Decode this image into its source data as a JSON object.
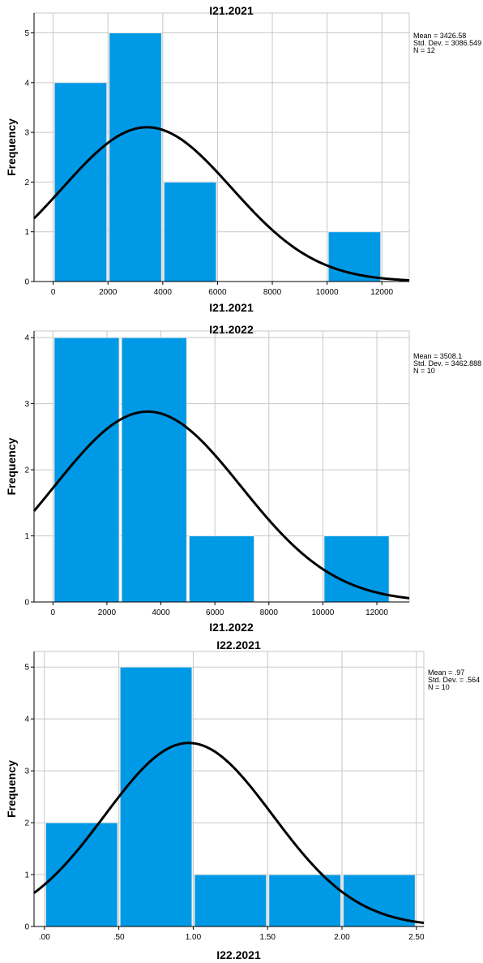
{
  "chart_data": [
    {
      "type": "bar",
      "subtype": "histogram",
      "title": "I21.2021",
      "xlabel": "I21.2021",
      "ylabel": "Frequency",
      "bins": [
        {
          "start": 0,
          "end": 2000,
          "count": 4
        },
        {
          "start": 2000,
          "end": 4000,
          "count": 5
        },
        {
          "start": 4000,
          "end": 6000,
          "count": 2
        },
        {
          "start": 6000,
          "end": 8000,
          "count": 0
        },
        {
          "start": 8000,
          "end": 10000,
          "count": 0
        },
        {
          "start": 10000,
          "end": 12000,
          "count": 1
        }
      ],
      "xlim": [
        -700,
        13000
      ],
      "ylim": [
        0,
        5.4
      ],
      "xticks": [
        0,
        2000,
        4000,
        6000,
        8000,
        10000,
        12000
      ],
      "xtick_labels": [
        "0",
        "2000",
        "4000",
        "6000",
        "8000",
        "10000",
        "12000"
      ],
      "yticks": [
        0,
        1,
        2,
        3,
        4,
        5
      ],
      "ytick_labels": [
        "0",
        "1",
        "2",
        "3",
        "4",
        "5"
      ],
      "normal_curve": {
        "mean": 3426.58,
        "sd": 3086.549,
        "n": 12,
        "bin_width": 2000
      },
      "stats": [
        "Mean = 3426.58",
        "Std. Dev. = 3086.549",
        "N = 12"
      ],
      "grid": true,
      "bar_color": "#0099e6",
      "curve_color": "#000000"
    },
    {
      "type": "bar",
      "subtype": "histogram",
      "title": "I21.2022",
      "xlabel": "I21.2022",
      "ylabel": "Frequency",
      "bins": [
        {
          "start": 0,
          "end": 2500,
          "count": 4
        },
        {
          "start": 2500,
          "end": 5000,
          "count": 4
        },
        {
          "start": 5000,
          "end": 7500,
          "count": 1
        },
        {
          "start": 7500,
          "end": 10000,
          "count": 0
        },
        {
          "start": 10000,
          "end": 12500,
          "count": 1
        }
      ],
      "xlim": [
        -700,
        13200
      ],
      "ylim": [
        0,
        4.1
      ],
      "xticks": [
        0,
        2000,
        4000,
        6000,
        8000,
        10000,
        12000
      ],
      "xtick_labels": [
        "0",
        "2000",
        "4000",
        "6000",
        "8000",
        "10000",
        "12000"
      ],
      "yticks": [
        0,
        1,
        2,
        3,
        4
      ],
      "ytick_labels": [
        "0",
        "1",
        "2",
        "3",
        "4"
      ],
      "normal_curve": {
        "mean": 3508.1,
        "sd": 3462.888,
        "n": 10,
        "bin_width": 2500
      },
      "stats": [
        "Mean = 3508.1",
        "Std. Dev. = 3462.888",
        "N = 10"
      ],
      "grid": true,
      "bar_color": "#0099e6",
      "curve_color": "#000000"
    },
    {
      "type": "bar",
      "subtype": "histogram",
      "title": "I22.2021",
      "xlabel": "I22.2021",
      "ylabel": "Frequency",
      "bins": [
        {
          "start": 0.0,
          "end": 0.5,
          "count": 2
        },
        {
          "start": 0.5,
          "end": 1.0,
          "count": 5
        },
        {
          "start": 1.0,
          "end": 1.5,
          "count": 1
        },
        {
          "start": 1.5,
          "end": 2.0,
          "count": 1
        },
        {
          "start": 2.0,
          "end": 2.5,
          "count": 1
        }
      ],
      "xlim": [
        -0.07,
        2.55
      ],
      "ylim": [
        0,
        5.3
      ],
      "xticks": [
        0.0,
        0.5,
        1.0,
        1.5,
        2.0,
        2.5
      ],
      "xtick_labels": [
        ".00",
        ".50",
        "1.00",
        "1.50",
        "2.00",
        "2.50"
      ],
      "yticks": [
        0,
        1,
        2,
        3,
        4,
        5
      ],
      "ytick_labels": [
        "0",
        "1",
        "2",
        "3",
        "4",
        "5"
      ],
      "normal_curve": {
        "mean": 0.97,
        "sd": 0.564,
        "n": 10,
        "bin_width": 0.5
      },
      "stats": [
        "Mean = .97",
        "Std. Dev. = .564",
        "N = 10"
      ],
      "grid": true,
      "bar_color": "#0099e6",
      "curve_color": "#000000"
    }
  ]
}
